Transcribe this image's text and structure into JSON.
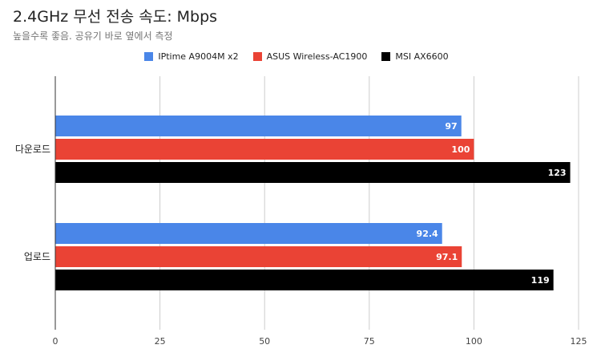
{
  "chart_data": {
    "type": "bar",
    "orientation": "horizontal",
    "title": "2.4GHz 무선 전송 속도: Mbps",
    "subtitle": "높을수록 좋음. 공유기 바로 옆에서 측정",
    "categories": [
      "다운로드",
      "업로드"
    ],
    "series": [
      {
        "name": "IPtime A9004M x2",
        "color": "#4a86e8",
        "values": [
          97,
          92.4
        ]
      },
      {
        "name": "ASUS Wireless-AC1900",
        "color": "#ea4335",
        "values": [
          100,
          97.1
        ]
      },
      {
        "name": "MSI AX6600",
        "color": "#000000",
        "values": [
          123,
          119
        ]
      }
    ],
    "data_labels": [
      [
        "97",
        "92.4"
      ],
      [
        "100",
        "97.1"
      ],
      [
        "123",
        "119"
      ]
    ],
    "x_ticks": [
      "0",
      "25",
      "50",
      "75",
      "100",
      "125"
    ],
    "xlim": [
      0,
      125
    ],
    "grid": true,
    "legend_position": "top-center"
  }
}
